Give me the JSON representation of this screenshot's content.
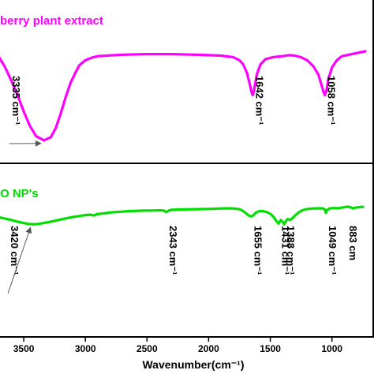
{
  "chart_data": {
    "type": "line",
    "xlabel": "Wavenumber(cm⁻¹)",
    "xlim": [
      3750,
      550
    ],
    "x_ticks": [
      3500,
      3000,
      2500,
      2000,
      1500,
      1000
    ],
    "grid": false,
    "panels": [
      {
        "title": "berry plant extract",
        "color": "#ff00ff",
        "series": [
          {
            "x": 3750,
            "y": 100
          },
          {
            "x": 3700,
            "y": 95
          },
          {
            "x": 3650,
            "y": 85
          },
          {
            "x": 3600,
            "y": 72
          },
          {
            "x": 3550,
            "y": 58
          },
          {
            "x": 3500,
            "y": 42
          },
          {
            "x": 3450,
            "y": 28
          },
          {
            "x": 3400,
            "y": 18
          },
          {
            "x": 3335,
            "y": 14
          },
          {
            "x": 3280,
            "y": 17
          },
          {
            "x": 3240,
            "y": 26
          },
          {
            "x": 3200,
            "y": 40
          },
          {
            "x": 3160,
            "y": 56
          },
          {
            "x": 3120,
            "y": 70
          },
          {
            "x": 3080,
            "y": 80
          },
          {
            "x": 3050,
            "y": 87
          },
          {
            "x": 3000,
            "y": 92
          },
          {
            "x": 2950,
            "y": 94.5
          },
          {
            "x": 2900,
            "y": 96
          },
          {
            "x": 2700,
            "y": 97.5
          },
          {
            "x": 2500,
            "y": 98
          },
          {
            "x": 2300,
            "y": 98
          },
          {
            "x": 2100,
            "y": 97.5
          },
          {
            "x": 1900,
            "y": 96.5
          },
          {
            "x": 1800,
            "y": 95
          },
          {
            "x": 1750,
            "y": 92
          },
          {
            "x": 1720,
            "y": 88
          },
          {
            "x": 1690,
            "y": 80
          },
          {
            "x": 1665,
            "y": 68
          },
          {
            "x": 1650,
            "y": 60
          },
          {
            "x": 1642,
            "y": 58
          },
          {
            "x": 1630,
            "y": 64
          },
          {
            "x": 1610,
            "y": 78
          },
          {
            "x": 1580,
            "y": 88
          },
          {
            "x": 1540,
            "y": 93
          },
          {
            "x": 1480,
            "y": 95
          },
          {
            "x": 1400,
            "y": 96
          },
          {
            "x": 1350,
            "y": 97
          },
          {
            "x": 1300,
            "y": 96.5
          },
          {
            "x": 1250,
            "y": 95
          },
          {
            "x": 1200,
            "y": 92
          },
          {
            "x": 1150,
            "y": 86
          },
          {
            "x": 1110,
            "y": 78
          },
          {
            "x": 1080,
            "y": 66
          },
          {
            "x": 1065,
            "y": 60
          },
          {
            "x": 1058,
            "y": 58
          },
          {
            "x": 1045,
            "y": 62
          },
          {
            "x": 1030,
            "y": 73
          },
          {
            "x": 1000,
            "y": 85
          },
          {
            "x": 960,
            "y": 92
          },
          {
            "x": 920,
            "y": 96
          },
          {
            "x": 880,
            "y": 97
          },
          {
            "x": 840,
            "y": 98
          },
          {
            "x": 800,
            "y": 99
          },
          {
            "x": 760,
            "y": 100
          },
          {
            "x": 720,
            "y": 101
          }
        ],
        "annotations": [
          {
            "text": "3335 cm⁻¹",
            "x": 3335,
            "arrow": true
          },
          {
            "text": "1642 cm⁻¹",
            "x": 1642,
            "arrow": false
          },
          {
            "text": "1058 cm⁻¹",
            "x": 1058,
            "arrow": false
          }
        ]
      },
      {
        "title": "O NP's",
        "color": "#00e000",
        "series": [
          {
            "x": 3750,
            "y": 78
          },
          {
            "x": 3700,
            "y": 76
          },
          {
            "x": 3650,
            "y": 73
          },
          {
            "x": 3600,
            "y": 70
          },
          {
            "x": 3550,
            "y": 66
          },
          {
            "x": 3500,
            "y": 63
          },
          {
            "x": 3460,
            "y": 61
          },
          {
            "x": 3420,
            "y": 60
          },
          {
            "x": 3380,
            "y": 61
          },
          {
            "x": 3340,
            "y": 63
          },
          {
            "x": 3300,
            "y": 65
          },
          {
            "x": 3250,
            "y": 68
          },
          {
            "x": 3200,
            "y": 71
          },
          {
            "x": 3150,
            "y": 74
          },
          {
            "x": 3100,
            "y": 77
          },
          {
            "x": 3050,
            "y": 79
          },
          {
            "x": 3000,
            "y": 81
          },
          {
            "x": 2960,
            "y": 82
          },
          {
            "x": 2930,
            "y": 80
          },
          {
            "x": 2910,
            "y": 83
          },
          {
            "x": 2880,
            "y": 84
          },
          {
            "x": 2850,
            "y": 85
          },
          {
            "x": 2800,
            "y": 87
          },
          {
            "x": 2750,
            "y": 88
          },
          {
            "x": 2700,
            "y": 89
          },
          {
            "x": 2650,
            "y": 90
          },
          {
            "x": 2600,
            "y": 90.5
          },
          {
            "x": 2550,
            "y": 91
          },
          {
            "x": 2500,
            "y": 91.5
          },
          {
            "x": 2450,
            "y": 91.5
          },
          {
            "x": 2400,
            "y": 92
          },
          {
            "x": 2365,
            "y": 91.5
          },
          {
            "x": 2343,
            "y": 88
          },
          {
            "x": 2320,
            "y": 91.5
          },
          {
            "x": 2300,
            "y": 93
          },
          {
            "x": 2200,
            "y": 94
          },
          {
            "x": 2100,
            "y": 94.5
          },
          {
            "x": 2000,
            "y": 95
          },
          {
            "x": 1900,
            "y": 96
          },
          {
            "x": 1850,
            "y": 96.5
          },
          {
            "x": 1800,
            "y": 96
          },
          {
            "x": 1760,
            "y": 95
          },
          {
            "x": 1730,
            "y": 92
          },
          {
            "x": 1700,
            "y": 86
          },
          {
            "x": 1675,
            "y": 80
          },
          {
            "x": 1655,
            "y": 78
          },
          {
            "x": 1640,
            "y": 80
          },
          {
            "x": 1620,
            "y": 86
          },
          {
            "x": 1590,
            "y": 90
          },
          {
            "x": 1560,
            "y": 90
          },
          {
            "x": 1530,
            "y": 88
          },
          {
            "x": 1500,
            "y": 84
          },
          {
            "x": 1470,
            "y": 76
          },
          {
            "x": 1450,
            "y": 67
          },
          {
            "x": 1431,
            "y": 62
          },
          {
            "x": 1415,
            "y": 70
          },
          {
            "x": 1400,
            "y": 66
          },
          {
            "x": 1388,
            "y": 60
          },
          {
            "x": 1375,
            "y": 67
          },
          {
            "x": 1360,
            "y": 72
          },
          {
            "x": 1340,
            "y": 70
          },
          {
            "x": 1320,
            "y": 74
          },
          {
            "x": 1300,
            "y": 80
          },
          {
            "x": 1270,
            "y": 87
          },
          {
            "x": 1240,
            "y": 92
          },
          {
            "x": 1200,
            "y": 95
          },
          {
            "x": 1150,
            "y": 96
          },
          {
            "x": 1100,
            "y": 96.5
          },
          {
            "x": 1070,
            "y": 96
          },
          {
            "x": 1055,
            "y": 93
          },
          {
            "x": 1049,
            "y": 86
          },
          {
            "x": 1040,
            "y": 92
          },
          {
            "x": 1020,
            "y": 96
          },
          {
            "x": 990,
            "y": 97
          },
          {
            "x": 960,
            "y": 96.5
          },
          {
            "x": 940,
            "y": 97
          },
          {
            "x": 900,
            "y": 99
          },
          {
            "x": 870,
            "y": 100
          },
          {
            "x": 850,
            "y": 99
          },
          {
            "x": 830,
            "y": 96
          },
          {
            "x": 810,
            "y": 98
          },
          {
            "x": 780,
            "y": 99
          },
          {
            "x": 740,
            "y": 100
          }
        ],
        "annotations": [
          {
            "text": "3420 cm⁻¹",
            "x": 3420,
            "arrow": true
          },
          {
            "text": "2343 cm⁻¹",
            "x": 2343,
            "arrow": false
          },
          {
            "text": "1655 cm⁻¹",
            "x": 1655,
            "arrow": false
          },
          {
            "text": "1431 cm⁻¹",
            "x": 1431,
            "arrow": false
          },
          {
            "text": "1388 cm⁻¹",
            "x": 1388,
            "arrow": false
          },
          {
            "text": "1049 cm⁻¹",
            "x": 1049,
            "arrow": false
          },
          {
            "text": "883 cm",
            "x": 883,
            "arrow": false
          }
        ]
      }
    ]
  }
}
